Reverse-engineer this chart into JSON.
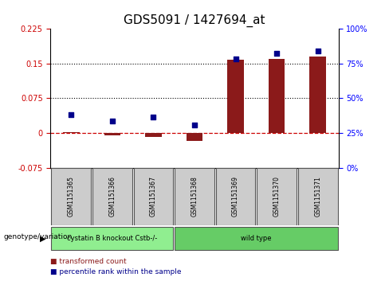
{
  "title": "GDS5091 / 1427694_at",
  "samples": [
    "GSM1151365",
    "GSM1151366",
    "GSM1151367",
    "GSM1151368",
    "GSM1151369",
    "GSM1151370",
    "GSM1151371"
  ],
  "transformed_count": [
    0.002,
    -0.005,
    -0.008,
    -0.018,
    0.158,
    0.16,
    0.165
  ],
  "percentile_rank_left": [
    0.04,
    0.025,
    0.035,
    0.018,
    0.16,
    0.173,
    0.178
  ],
  "ylim_left": [
    -0.075,
    0.225
  ],
  "ylim_right": [
    0,
    100
  ],
  "yticks_left": [
    -0.075,
    0.0,
    0.075,
    0.15,
    0.225
  ],
  "ytick_labels_left": [
    "-0.075",
    "0",
    "0.075",
    "0.15",
    "0.225"
  ],
  "yticks_right": [
    0,
    25,
    50,
    75,
    100
  ],
  "ytick_labels_right": [
    "0%",
    "25%",
    "50%",
    "75%",
    "100%"
  ],
  "hlines": [
    0.075,
    0.15
  ],
  "bar_color": "#8B1A1A",
  "dot_color": "#00008B",
  "dashed_line_color": "#CD0000",
  "bar_width": 0.4,
  "groups": [
    {
      "label": "cystatin B knockout Cstb-/-",
      "start": 0,
      "end": 2,
      "color": "#90EE90"
    },
    {
      "label": "wild type",
      "start": 3,
      "end": 6,
      "color": "#66CC66"
    }
  ],
  "legend_bar_label": "transformed count",
  "legend_dot_label": "percentile rank within the sample",
  "genotype_label": "genotype/variation",
  "background_color": "#FFFFFF",
  "plot_bg_color": "#FFFFFF",
  "title_fontsize": 11,
  "tick_fontsize": 7,
  "sample_fontsize": 5.5,
  "group_fontsize": 6,
  "legend_fontsize": 6.5
}
